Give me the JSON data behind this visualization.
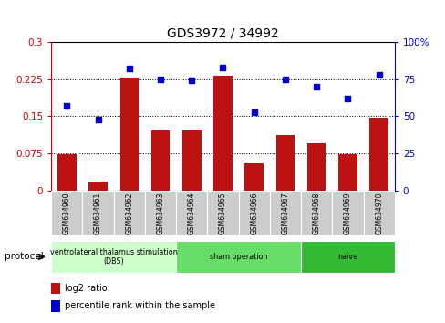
{
  "title": "GDS3972 / 34992",
  "samples": [
    "GSM634960",
    "GSM634961",
    "GSM634962",
    "GSM634963",
    "GSM634964",
    "GSM634965",
    "GSM634966",
    "GSM634967",
    "GSM634968",
    "GSM634969",
    "GSM634970"
  ],
  "log2_ratio": [
    0.073,
    0.018,
    0.228,
    0.122,
    0.122,
    0.232,
    0.055,
    0.113,
    0.095,
    0.073,
    0.148
  ],
  "percentile_rank": [
    57,
    48,
    82,
    75,
    74,
    83,
    53,
    75,
    70,
    62,
    78
  ],
  "bar_color": "#bb1111",
  "dot_color": "#0000cc",
  "groups": [
    {
      "label": "ventrolateral thalamus stimulation\n(DBS)",
      "start": 0,
      "end": 3,
      "color": "#ccffcc"
    },
    {
      "label": "sham operation",
      "start": 4,
      "end": 7,
      "color": "#66dd66"
    },
    {
      "label": "naive",
      "start": 8,
      "end": 10,
      "color": "#33bb33"
    }
  ],
  "ylim_left": [
    0,
    0.3
  ],
  "ylim_right": [
    0,
    100
  ],
  "yticks_left": [
    0,
    0.075,
    0.15,
    0.225,
    0.3
  ],
  "yticks_right": [
    0,
    25,
    50,
    75,
    100
  ],
  "ytick_labels_left": [
    "0",
    "0.075",
    "0.15",
    "0.225",
    "0.3"
  ],
  "ytick_labels_right": [
    "0",
    "25",
    "50",
    "75",
    "100%"
  ],
  "left_axis_color": "#cc0000",
  "right_axis_color": "#0000cc",
  "protocol_label": "protocol",
  "legend_red": "log2 ratio",
  "legend_blue": "percentile rank within the sample",
  "bg_color": "#ffffff",
  "label_box_color": "#cccccc"
}
